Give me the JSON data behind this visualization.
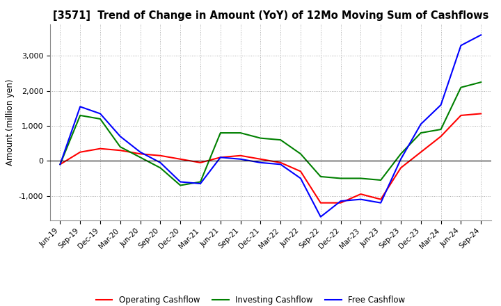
{
  "title": "[3571]  Trend of Change in Amount (YoY) of 12Mo Moving Sum of Cashflows",
  "ylabel": "Amount (million yen)",
  "x_labels": [
    "Jun-19",
    "Sep-19",
    "Dec-19",
    "Mar-20",
    "Jun-20",
    "Sep-20",
    "Dec-20",
    "Mar-21",
    "Jun-21",
    "Sep-21",
    "Dec-21",
    "Mar-22",
    "Jun-22",
    "Sep-22",
    "Dec-22",
    "Mar-23",
    "Jun-23",
    "Sep-23",
    "Dec-23",
    "Mar-24",
    "Jun-24",
    "Sep-24"
  ],
  "operating": [
    -100,
    250,
    350,
    300,
    200,
    150,
    50,
    -50,
    100,
    150,
    50,
    -50,
    -300,
    -1200,
    -1200,
    -950,
    -1100,
    -200,
    250,
    700,
    1300,
    1350
  ],
  "investing": [
    -100,
    1300,
    1200,
    400,
    100,
    -200,
    -700,
    -600,
    800,
    800,
    650,
    600,
    200,
    -450,
    -500,
    -500,
    -550,
    200,
    800,
    900,
    2100,
    2250
  ],
  "free": [
    -100,
    1550,
    1350,
    700,
    250,
    -50,
    -600,
    -650,
    100,
    50,
    -50,
    -100,
    -500,
    -1600,
    -1150,
    -1100,
    -1200,
    50,
    1050,
    1600,
    3300,
    3600
  ],
  "colors": {
    "operating": "#ff0000",
    "investing": "#008000",
    "free": "#0000ff"
  },
  "ylim": [
    -1700,
    3900
  ],
  "yticks": [
    -1000,
    0,
    1000,
    2000,
    3000
  ],
  "legend_labels": [
    "Operating Cashflow",
    "Investing Cashflow",
    "Free Cashflow"
  ],
  "background_color": "#ffffff",
  "grid_color": "#aaaaaa"
}
